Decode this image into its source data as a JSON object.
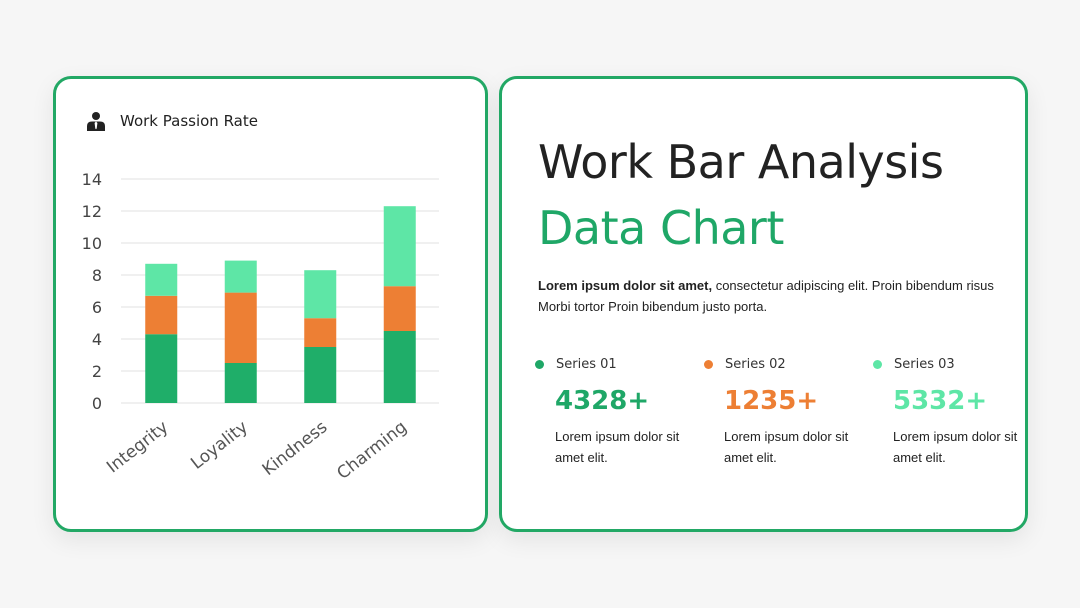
{
  "left_card": {
    "title": "Work Passion Rate",
    "icon": "person-tie-icon"
  },
  "chart_data": {
    "type": "bar",
    "stacked": true,
    "title": "Work Passion Rate",
    "categories": [
      "Integrity",
      "Loyality",
      "Kindness",
      "Charming"
    ],
    "series": [
      {
        "name": "Series 01",
        "color": "#1fae69",
        "values": [
          4.3,
          2.5,
          3.5,
          4.5
        ]
      },
      {
        "name": "Series 02",
        "color": "#ed7f34",
        "values": [
          2.4,
          4.4,
          1.8,
          2.8
        ]
      },
      {
        "name": "Series 03",
        "color": "#5ee6a6",
        "values": [
          2.0,
          2.0,
          3.0,
          5.0
        ]
      }
    ],
    "ylim": [
      0,
      14
    ],
    "yticks": [
      0,
      2,
      4,
      6,
      8,
      10,
      12,
      14
    ],
    "grid": true,
    "legend": "none"
  },
  "right_card": {
    "heading_line1": "Work Bar Analysis",
    "heading_line2": "Data Chart",
    "description_bold": "Lorem ipsum dolor sit amet,",
    "description_rest": " consectetur adipiscing elit. Proin bibendum risus Morbi tortor Proin bibendum justo porta.",
    "series": [
      {
        "name": "Series 01",
        "value": "4328+",
        "note": "Lorem ipsum dolor sit amet elit.",
        "color": "#1fa767"
      },
      {
        "name": "Series 02",
        "value": "1235+",
        "note": "Lorem ipsum dolor sit amet elit.",
        "color": "#ed7f34"
      },
      {
        "name": "Series 03",
        "value": "5332+",
        "note": "Lorem ipsum dolor sit amet elit.",
        "color": "#5ee6a6"
      }
    ]
  }
}
